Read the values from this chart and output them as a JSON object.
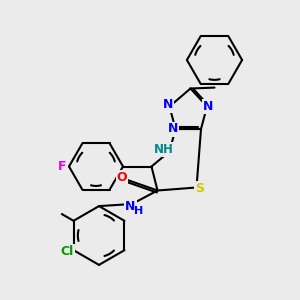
{
  "background_color": "#ebebeb",
  "bond_color": "#000000",
  "atom_colors": {
    "F": "#ee00ee",
    "N": "#0000ff",
    "O": "#ff0000",
    "S": "#cccc00",
    "Cl": "#009900",
    "NH_color": "#008888",
    "C": "#000000"
  },
  "figsize": [
    3.0,
    3.0
  ],
  "dpi": 100
}
